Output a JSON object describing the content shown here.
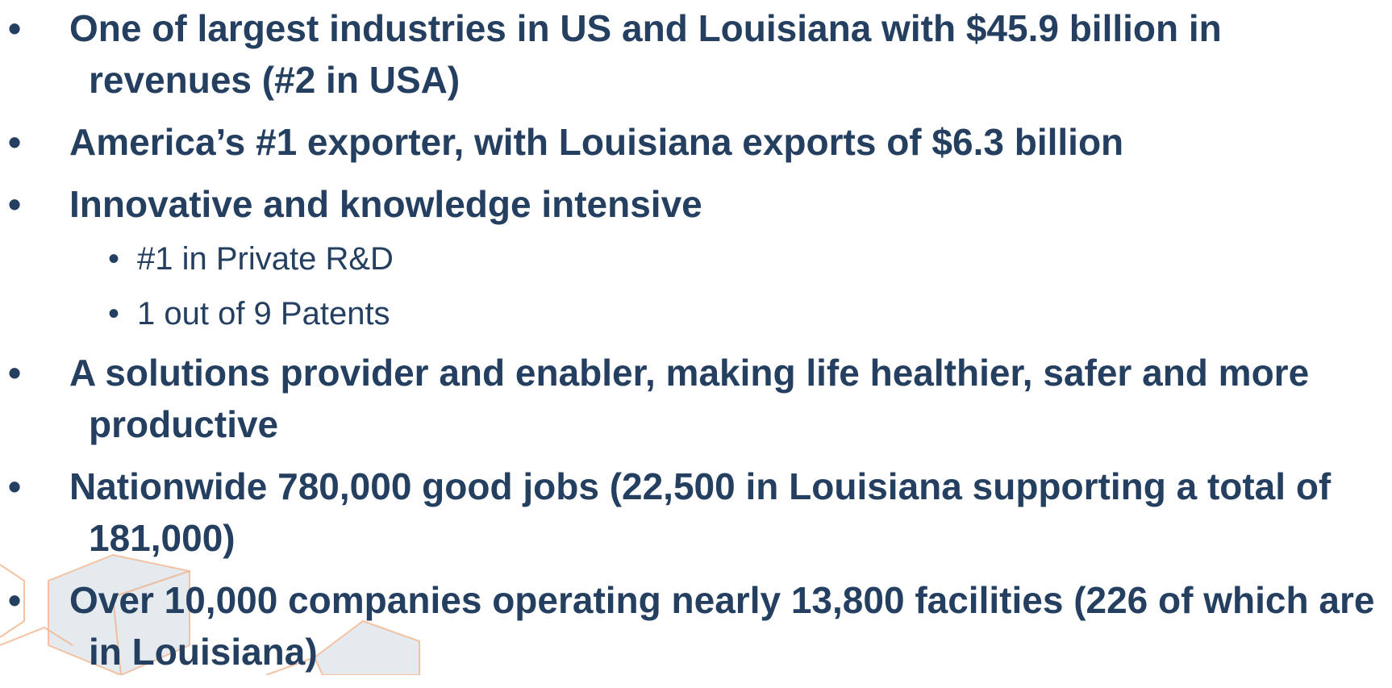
{
  "bullets": [
    {
      "text": "One of largest industries in US and Louisiana with $45.9 billion in revenues (#2 in USA)"
    },
    {
      "text": "America’s #1 exporter, with Louisiana exports of $6.3 billion"
    },
    {
      "text": "Innovative and knowledge intensive",
      "sub": [
        "#1 in Private R&D",
        "1  out of 9 Patents"
      ]
    },
    {
      "text": "A solutions provider and enabler, making life healthier, safer and more productive"
    },
    {
      "text": "Nationwide 780,000 good jobs (22,500 in Louisiana supporting a total of 181,000)"
    },
    {
      "text": "Over 10,000 companies operating nearly 13,800 facilities (226 of which are in Louisiana)"
    }
  ]
}
